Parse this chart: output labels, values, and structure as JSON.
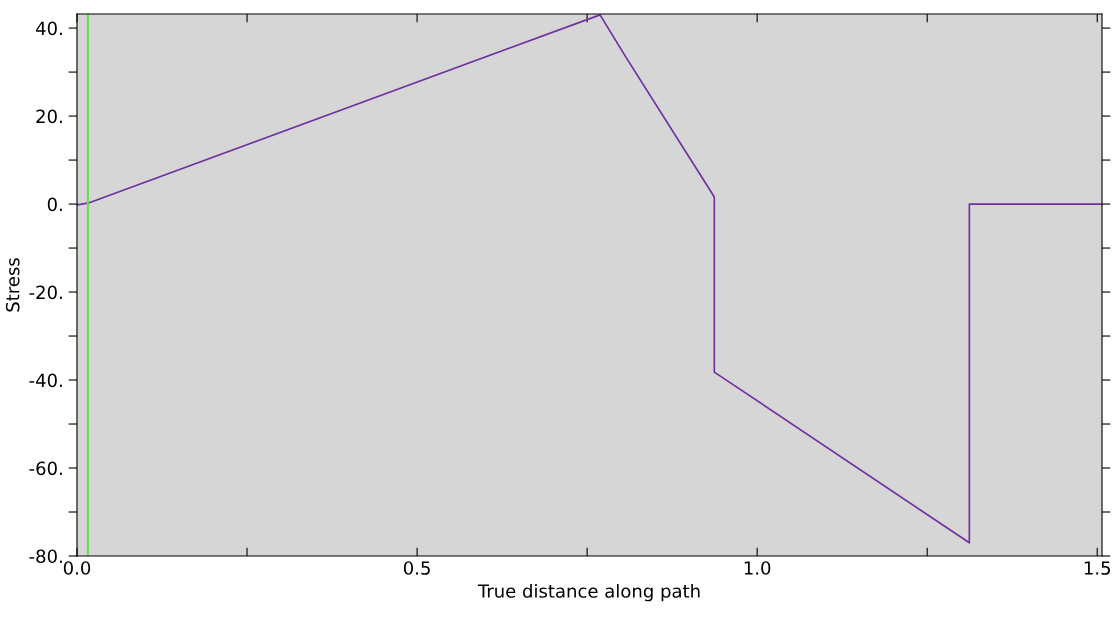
{
  "chart_data": {
    "type": "line",
    "xlabel": "True distance along path",
    "ylabel": "Stress",
    "x": [
      0.0,
      0.016,
      0.769,
      0.807,
      0.915,
      0.937,
      0.937,
      1.312,
      1.312,
      1.507
    ],
    "series": [
      {
        "color": "#7030a0",
        "values": [
          -0.2,
          0.2,
          43.0,
          33.4,
          7.0,
          1.6,
          -38.2,
          -77.0,
          0.0,
          0.0
        ]
      }
    ],
    "xlim": [
      0,
      1.507
    ],
    "ylim": [
      -80,
      43.2
    ],
    "xticks": [
      {
        "value": 0,
        "label": "0.0"
      },
      {
        "value": 0.25,
        "label": null
      },
      {
        "value": 0.5,
        "label": "0.5"
      },
      {
        "value": 0.75,
        "label": null
      },
      {
        "value": 1.0,
        "label": "1.0"
      },
      {
        "value": 1.25,
        "label": null
      },
      {
        "value": 1.5,
        "label": "1.5"
      }
    ],
    "yticks": [
      {
        "value": -80,
        "label": "-80."
      },
      {
        "value": -70,
        "label": null
      },
      {
        "value": -60,
        "label": "-60."
      },
      {
        "value": -50,
        "label": null
      },
      {
        "value": -40,
        "label": "-40."
      },
      {
        "value": -30,
        "label": null
      },
      {
        "value": -20,
        "label": "-20."
      },
      {
        "value": -10,
        "label": null
      },
      {
        "value": 0,
        "label": "0."
      },
      {
        "value": 10,
        "label": null
      },
      {
        "value": 20,
        "label": "20."
      },
      {
        "value": 30,
        "label": null
      },
      {
        "value": 40,
        "label": "40."
      }
    ],
    "ref_lines": [
      {
        "axis": "x",
        "value": 0.016,
        "color": "#66dd55"
      }
    ],
    "grid": false,
    "legend": false,
    "marker": "none",
    "line_style": "solid"
  }
}
